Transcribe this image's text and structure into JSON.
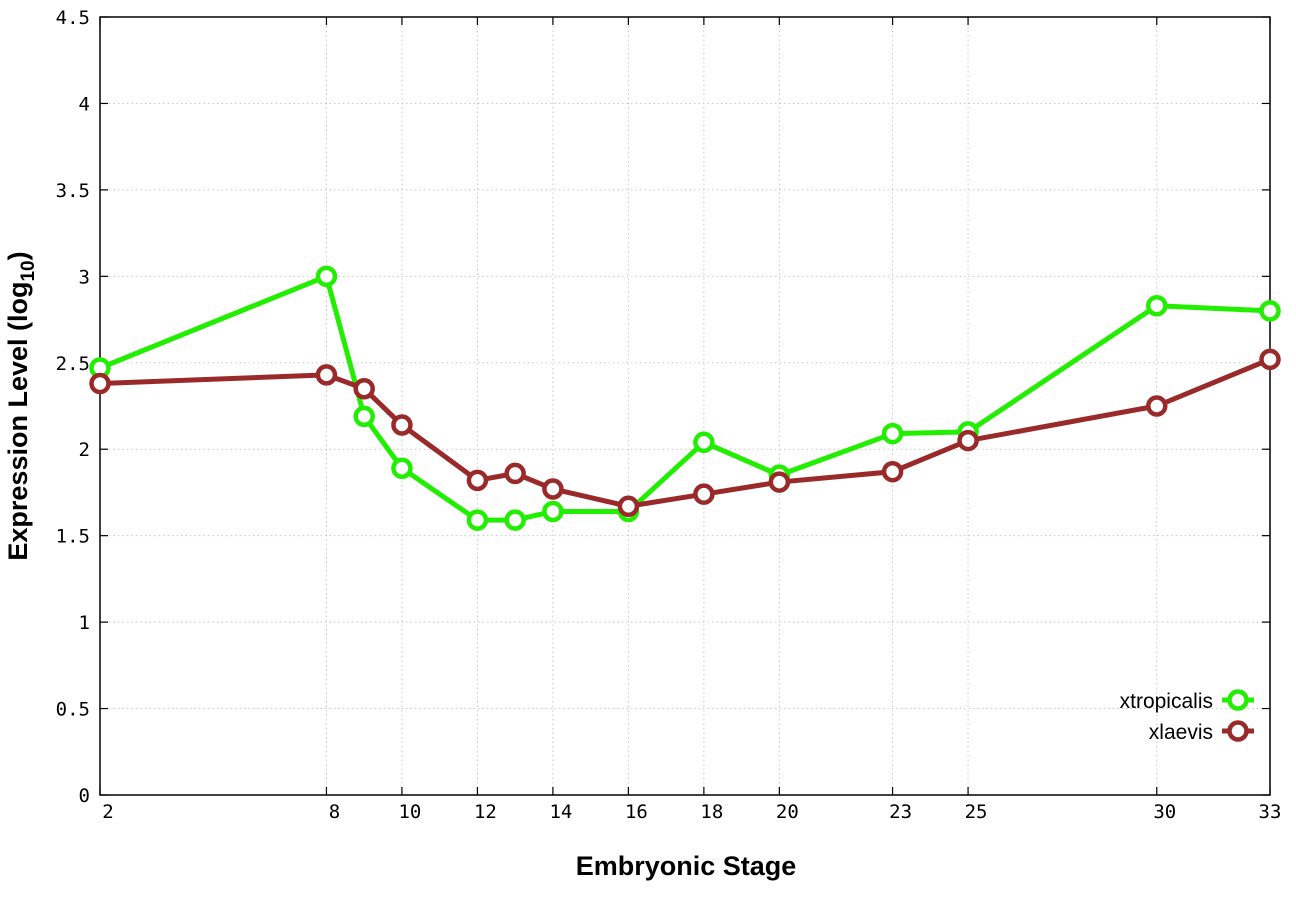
{
  "chart_data": {
    "type": "line",
    "xlabel": "Embryonic Stage",
    "ylabel": "Expression Level (log",
    "ylabel_sub": "10",
    "ylabel_end": ")",
    "ylim": [
      0,
      4.5
    ],
    "xlim": [
      2,
      33
    ],
    "grid": true,
    "legend_position": "bottom-right",
    "y_ticks": [
      "0",
      "0.5",
      "1",
      "1.5",
      "2",
      "2.5",
      "3",
      "3.5",
      "4",
      "4.5"
    ],
    "x_ticks": [
      "2",
      "8",
      "10",
      "12",
      "14",
      "16",
      "18",
      "20",
      "23",
      "25",
      "30",
      "33"
    ],
    "x": [
      2,
      8,
      9,
      10,
      12,
      13,
      14,
      16,
      18,
      20,
      23,
      25,
      30,
      33
    ],
    "series": [
      {
        "name": "xtropicalis",
        "color": "#22ee00",
        "values": [
          2.47,
          3.0,
          2.19,
          1.89,
          1.59,
          1.59,
          1.64,
          1.64,
          2.04,
          1.85,
          2.09,
          2.1,
          2.83,
          2.8
        ]
      },
      {
        "name": "xlaevis",
        "color": "#9a2a2a",
        "values": [
          2.38,
          2.43,
          2.35,
          2.14,
          1.82,
          1.86,
          1.77,
          1.67,
          1.74,
          1.81,
          1.87,
          2.05,
          2.25,
          2.52
        ]
      }
    ]
  }
}
